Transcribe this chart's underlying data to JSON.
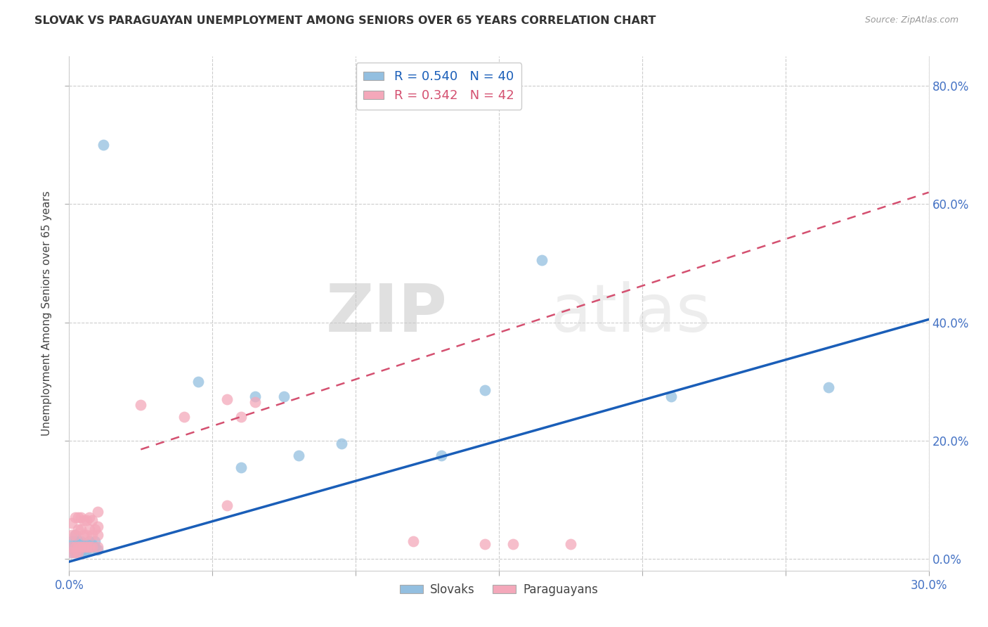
{
  "title": "SLOVAK VS PARAGUAYAN UNEMPLOYMENT AMONG SENIORS OVER 65 YEARS CORRELATION CHART",
  "source": "Source: ZipAtlas.com",
  "ylabel": "Unemployment Among Seniors over 65 years",
  "xlim": [
    0.0,
    0.3
  ],
  "ylim": [
    -0.02,
    0.85
  ],
  "slovak_R": 0.54,
  "slovak_N": 40,
  "paraguayan_R": 0.342,
  "paraguayan_N": 42,
  "slovak_color": "#93bfe0",
  "paraguayan_color": "#f4a8ba",
  "slovak_line_color": "#1a5eb8",
  "paraguayan_line_color": "#d45070",
  "watermark_zip": "ZIP",
  "watermark_atlas": "atlas",
  "legend_slovak": "Slovaks",
  "legend_paraguayan": "Paraguayans",
  "slovak_line_x0": 0.0,
  "slovak_line_y0": -0.005,
  "slovak_line_x1": 0.3,
  "slovak_line_y1": 0.405,
  "paraguayan_line_x0": 0.025,
  "paraguayan_line_y0": 0.185,
  "paraguayan_line_x1": 0.3,
  "paraguayan_line_y1": 0.62,
  "slovak_x": [
    0.001,
    0.001,
    0.001,
    0.002,
    0.002,
    0.002,
    0.002,
    0.002,
    0.003,
    0.003,
    0.003,
    0.003,
    0.003,
    0.004,
    0.004,
    0.004,
    0.005,
    0.005,
    0.005,
    0.006,
    0.006,
    0.007,
    0.007,
    0.008,
    0.008,
    0.009,
    0.009,
    0.01,
    0.012,
    0.045,
    0.06,
    0.065,
    0.075,
    0.08,
    0.095,
    0.13,
    0.145,
    0.165,
    0.21,
    0.265
  ],
  "slovak_y": [
    0.01,
    0.02,
    0.03,
    0.01,
    0.015,
    0.02,
    0.03,
    0.04,
    0.01,
    0.015,
    0.02,
    0.025,
    0.03,
    0.01,
    0.02,
    0.03,
    0.01,
    0.015,
    0.025,
    0.015,
    0.025,
    0.02,
    0.03,
    0.015,
    0.025,
    0.02,
    0.03,
    0.015,
    0.7,
    0.3,
    0.155,
    0.275,
    0.275,
    0.175,
    0.195,
    0.175,
    0.285,
    0.505,
    0.275,
    0.29
  ],
  "paraguayan_x": [
    0.001,
    0.001,
    0.001,
    0.001,
    0.002,
    0.002,
    0.002,
    0.002,
    0.003,
    0.003,
    0.003,
    0.003,
    0.004,
    0.004,
    0.004,
    0.005,
    0.005,
    0.005,
    0.006,
    0.006,
    0.006,
    0.007,
    0.007,
    0.007,
    0.008,
    0.008,
    0.008,
    0.009,
    0.01,
    0.01,
    0.01,
    0.01,
    0.025,
    0.04,
    0.055,
    0.055,
    0.06,
    0.065,
    0.12,
    0.145,
    0.155,
    0.175
  ],
  "paraguayan_y": [
    0.01,
    0.02,
    0.04,
    0.06,
    0.01,
    0.02,
    0.04,
    0.07,
    0.01,
    0.02,
    0.05,
    0.07,
    0.02,
    0.05,
    0.07,
    0.02,
    0.04,
    0.065,
    0.02,
    0.04,
    0.065,
    0.02,
    0.05,
    0.07,
    0.02,
    0.04,
    0.065,
    0.05,
    0.02,
    0.04,
    0.055,
    0.08,
    0.26,
    0.24,
    0.27,
    0.09,
    0.24,
    0.265,
    0.03,
    0.025,
    0.025,
    0.025
  ]
}
